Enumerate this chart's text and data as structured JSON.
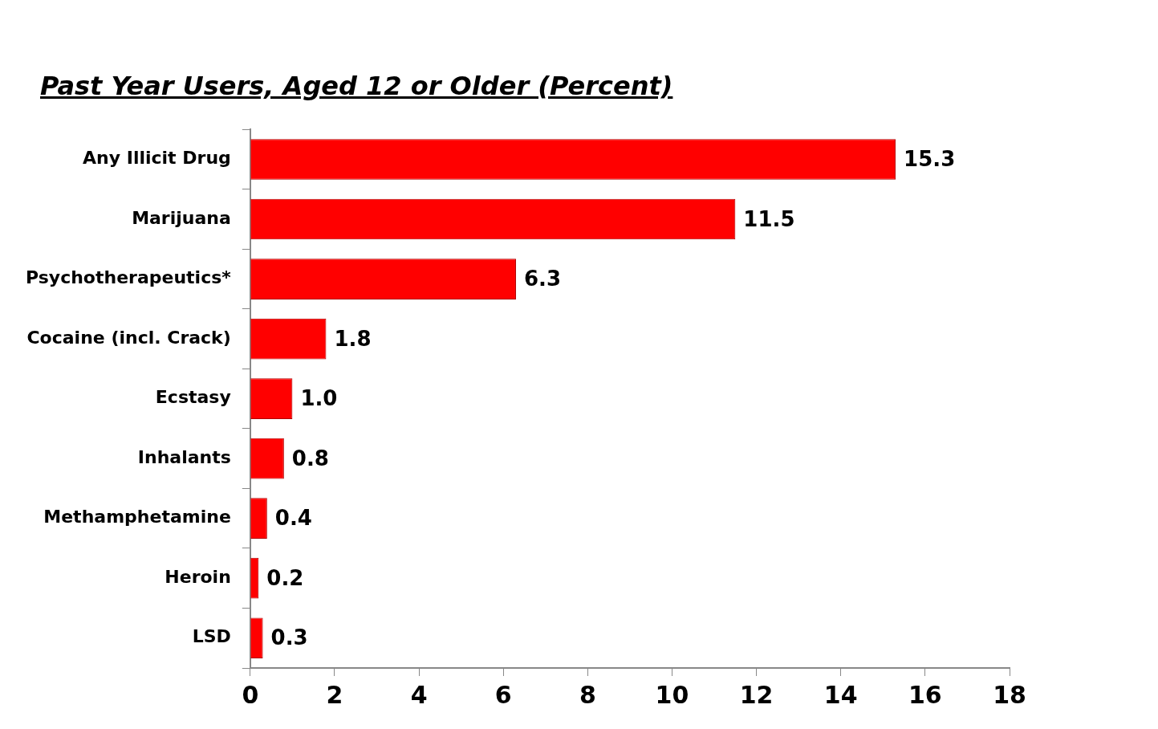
{
  "chart_data": {
    "type": "bar",
    "orientation": "horizontal",
    "title": "Past Year Users, Aged 12 or Older (Percent)",
    "categories": [
      "Any Illicit Drug",
      "Marijuana",
      "Psychotherapeutics*",
      "Cocaine (incl. Crack)",
      "Ecstasy",
      "Inhalants",
      "Methamphetamine",
      "Heroin",
      "LSD"
    ],
    "values": [
      15.3,
      11.5,
      6.3,
      1.8,
      1.0,
      0.8,
      0.4,
      0.2,
      0.3
    ],
    "color": "#ff0000",
    "xlim": [
      0,
      18
    ],
    "xticks": [
      0,
      2,
      4,
      6,
      8,
      10,
      12,
      14,
      16,
      18
    ],
    "value_labels": [
      "15.3",
      "11.5",
      "6.3",
      "1.8",
      "1.0",
      "0.8",
      "0.4",
      "0.2",
      "0.3"
    ]
  }
}
